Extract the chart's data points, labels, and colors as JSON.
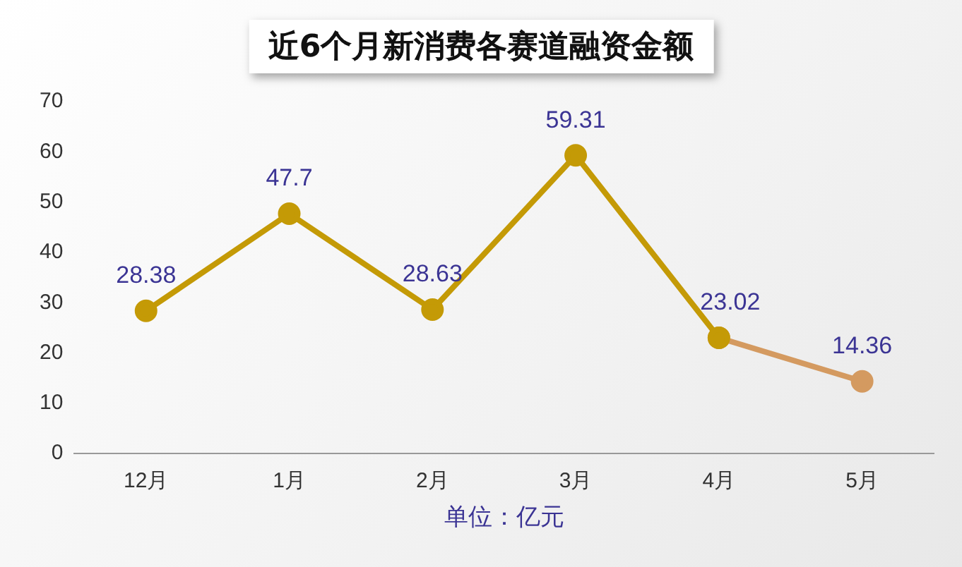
{
  "chart_data": {
    "type": "line",
    "title": "近6个月新消费各赛道融资金额",
    "xlabel": "单位：亿元",
    "categories": [
      "12月",
      "1月",
      "2月",
      "3月",
      "4月",
      "5月"
    ],
    "series": [
      {
        "color": "#c49a06",
        "values": [
          28.38,
          47.7,
          28.63,
          59.31,
          23.02,
          null
        ],
        "value_labels": [
          "28.38",
          "47.7",
          "28.63",
          "59.31",
          "23.02",
          null
        ]
      },
      {
        "color": "#d49a60",
        "values": [
          null,
          null,
          null,
          null,
          23.02,
          14.36
        ],
        "value_labels": [
          null,
          null,
          null,
          null,
          null,
          "14.36"
        ]
      }
    ],
    "ylim": [
      0,
      70
    ],
    "yticks": [
      0,
      10,
      20,
      30,
      40,
      50,
      60,
      70
    ],
    "grid": false,
    "legend": false,
    "marker": "circle",
    "line_style": "solid"
  }
}
